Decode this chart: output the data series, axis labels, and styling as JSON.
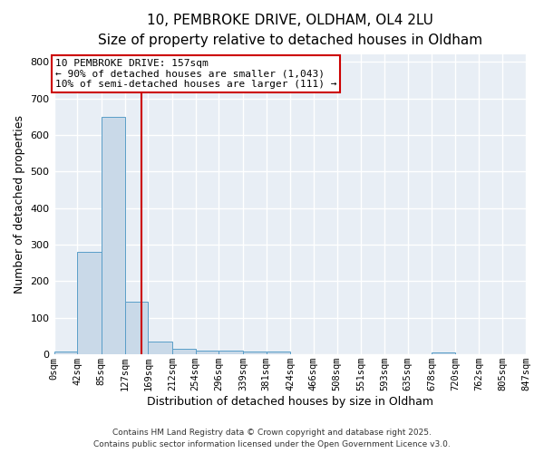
{
  "title_line1": "10, PEMBROKE DRIVE, OLDHAM, OL4 2LU",
  "title_line2": "Size of property relative to detached houses in Oldham",
  "xlabel": "Distribution of detached houses by size in Oldham",
  "ylabel": "Number of detached properties",
  "bin_edges": [
    0,
    42,
    85,
    127,
    169,
    212,
    254,
    296,
    339,
    381,
    424,
    466,
    508,
    551,
    593,
    635,
    678,
    720,
    762,
    805,
    847
  ],
  "bar_heights": [
    8,
    280,
    650,
    143,
    35,
    16,
    10,
    10,
    8,
    8,
    0,
    0,
    0,
    0,
    0,
    0,
    5,
    0,
    0,
    0
  ],
  "bar_facecolor": "#c9d9e8",
  "bar_edgecolor": "#5a9ec8",
  "property_line_x": 157,
  "property_line_color": "#cc0000",
  "ylim": [
    0,
    820
  ],
  "yticks": [
    0,
    100,
    200,
    300,
    400,
    500,
    600,
    700,
    800
  ],
  "annotation_line1": "10 PEMBROKE DRIVE: 157sqm",
  "annotation_line2": "← 90% of detached houses are smaller (1,043)",
  "annotation_line3": "10% of semi-detached houses are larger (111) →",
  "annotation_box_color": "#cc0000",
  "bg_color": "#e8eef5",
  "grid_color": "#ffffff",
  "footer_line1": "Contains HM Land Registry data © Crown copyright and database right 2025.",
  "footer_line2": "Contains public sector information licensed under the Open Government Licence v3.0.",
  "tick_labels": [
    "0sqm",
    "42sqm",
    "85sqm",
    "127sqm",
    "169sqm",
    "212sqm",
    "254sqm",
    "296sqm",
    "339sqm",
    "381sqm",
    "424sqm",
    "466sqm",
    "508sqm",
    "551sqm",
    "593sqm",
    "635sqm",
    "678sqm",
    "720sqm",
    "762sqm",
    "805sqm",
    "847sqm"
  ],
  "title_fontsize": 11,
  "subtitle_fontsize": 9.5,
  "axis_label_fontsize": 9,
  "tick_fontsize": 7.5,
  "annotation_fontsize": 8,
  "footer_fontsize": 6.5
}
